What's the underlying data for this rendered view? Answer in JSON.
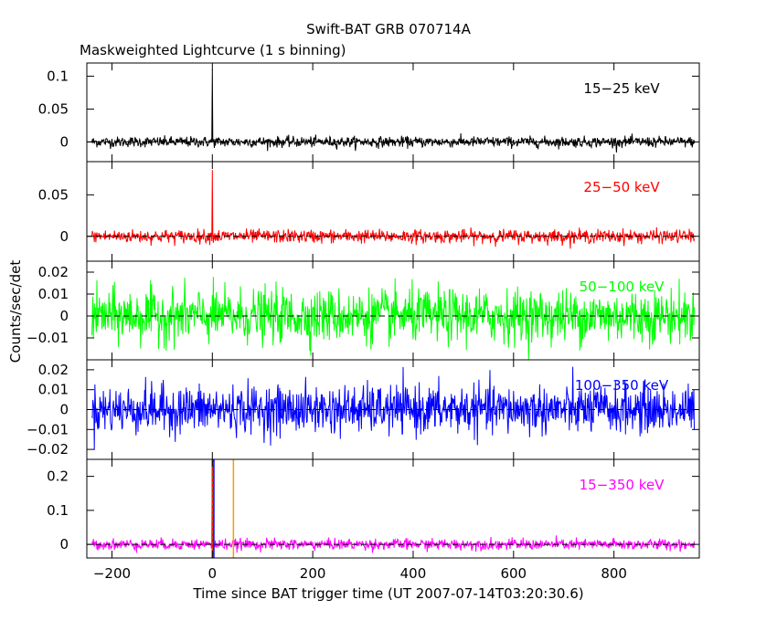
{
  "chart_data": {
    "type": "line",
    "title": "Swift-BAT GRB 070714A",
    "subtitle": "Maskweighted Lightcurve (1 s binning)",
    "xlabel": "Time since BAT trigger time (UT 2007-07-14T03:20:30.6)",
    "ylabel": "Counts/sec/det",
    "xlim": [
      -250,
      970
    ],
    "x_ticks": [
      -200,
      0,
      200,
      400,
      600,
      800
    ],
    "x_tick_labels": [
      "−200",
      "0",
      "200",
      "400",
      "600",
      "800"
    ],
    "time_range": [
      -240,
      960
    ],
    "panels": [
      {
        "band": "15−25 keV",
        "color": "#000000",
        "ylim": [
          -0.03,
          0.12
        ],
        "y_ticks": [
          0,
          0.05,
          0.1
        ],
        "y_tick_labels": [
          "0",
          "0.05",
          "0.1"
        ],
        "noise_sigma": 0.004,
        "peak": {
          "t": 0,
          "value": 0.11
        }
      },
      {
        "band": "25−50 keV",
        "color": "#ff0000",
        "ylim": [
          -0.03,
          0.09
        ],
        "y_ticks": [
          0,
          0.05
        ],
        "y_tick_labels": [
          "0",
          "0.05"
        ],
        "noise_sigma": 0.004,
        "peak": {
          "t": 0,
          "value": 0.08
        }
      },
      {
        "band": "50−100 keV",
        "color": "#00ff00",
        "ylim": [
          -0.02,
          0.025
        ],
        "y_ticks": [
          -0.01,
          0,
          0.01,
          0.02
        ],
        "y_tick_labels": [
          "−0.01",
          "0",
          "0.01",
          "0.02"
        ],
        "noise_sigma": 0.006,
        "peak": null
      },
      {
        "band": "100−350 keV",
        "color": "#0000ff",
        "ylim": [
          -0.025,
          0.025
        ],
        "y_ticks": [
          -0.02,
          -0.01,
          0,
          0.01,
          0.02
        ],
        "y_tick_labels": [
          "−0.02",
          "−0.01",
          "0",
          "0.01",
          "0.02"
        ],
        "noise_sigma": 0.006,
        "peak": null
      },
      {
        "band": "15−350 keV",
        "color": "#ff00ff",
        "ylim": [
          -0.04,
          0.25
        ],
        "y_ticks": [
          0,
          0.1,
          0.2
        ],
        "y_tick_labels": [
          "0",
          "0.1",
          "0.2"
        ],
        "noise_sigma": 0.008,
        "peak": {
          "t": 0,
          "value": 0.26
        }
      }
    ],
    "markers": [
      {
        "t": 0,
        "color": "#ff0000"
      },
      {
        "t": 2,
        "color": "#00ff00"
      },
      {
        "t": 3,
        "color": "#0000ff"
      },
      {
        "t": 42,
        "color": "#ff9900"
      }
    ],
    "grid": false,
    "legend": "none"
  }
}
